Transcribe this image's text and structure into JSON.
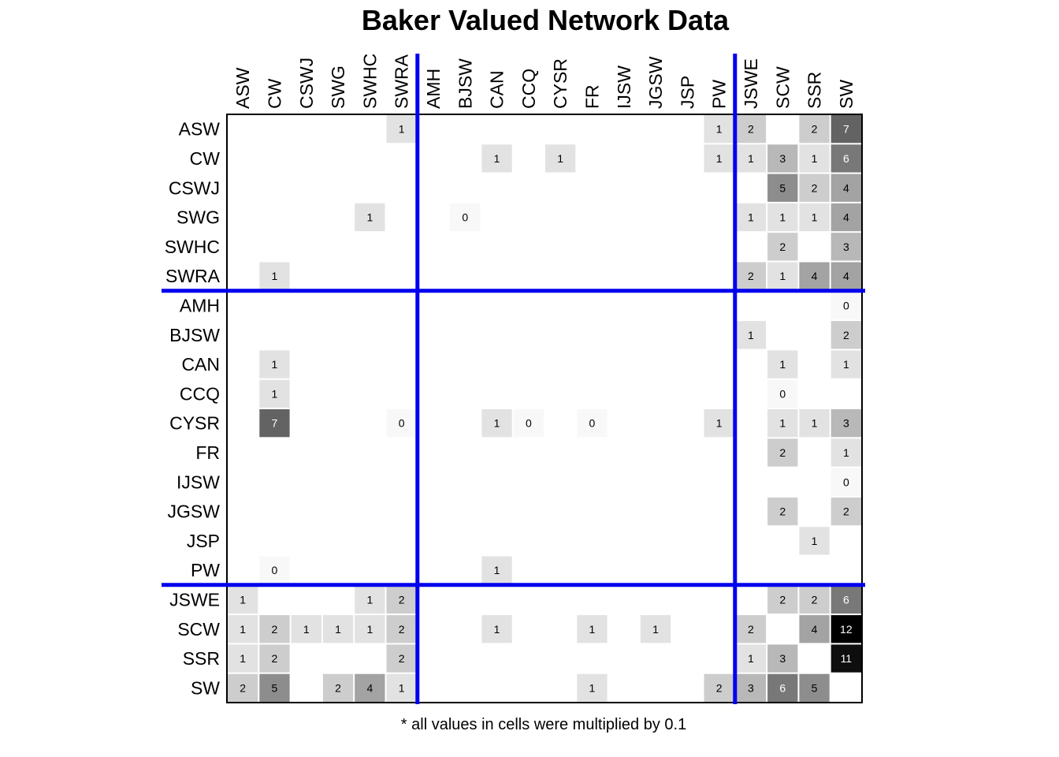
{
  "chart_data": {
    "type": "heatmap",
    "title": "Baker Valued Network Data",
    "caption": "* all values in cells were multiplied by 0.1",
    "labels": [
      "ASW",
      "CW",
      "CSWJ",
      "SWG",
      "SWHC",
      "SWRA",
      "AMH",
      "BJSW",
      "CAN",
      "CCQ",
      "CYSR",
      "FR",
      "IJSW",
      "JGSW",
      "JSP",
      "PW",
      "JSWE",
      "SCW",
      "SSR",
      "SW"
    ],
    "block_breaks_after": [
      5,
      15
    ],
    "block_line_color": "#0000ee",
    "color_scale": {
      "min": 0,
      "max": 12,
      "low": "#ffffff",
      "high": "#000000"
    },
    "matrix": [
      [
        null,
        null,
        null,
        null,
        null,
        1,
        null,
        null,
        null,
        null,
        null,
        null,
        null,
        null,
        null,
        1,
        2,
        null,
        2,
        7
      ],
      [
        null,
        null,
        null,
        null,
        null,
        null,
        null,
        null,
        1,
        null,
        1,
        null,
        null,
        null,
        null,
        1,
        1,
        3,
        1,
        6
      ],
      [
        null,
        null,
        null,
        null,
        null,
        null,
        null,
        null,
        null,
        null,
        null,
        null,
        null,
        null,
        null,
        null,
        null,
        5,
        2,
        4
      ],
      [
        null,
        null,
        null,
        null,
        1,
        null,
        null,
        0,
        null,
        null,
        null,
        null,
        null,
        null,
        null,
        null,
        1,
        1,
        1,
        4
      ],
      [
        null,
        null,
        null,
        null,
        null,
        null,
        null,
        null,
        null,
        null,
        null,
        null,
        null,
        null,
        null,
        null,
        null,
        2,
        null,
        3
      ],
      [
        null,
        1,
        null,
        null,
        null,
        null,
        null,
        null,
        null,
        null,
        null,
        null,
        null,
        null,
        null,
        null,
        2,
        1,
        4,
        4
      ],
      [
        null,
        null,
        null,
        null,
        null,
        null,
        null,
        null,
        null,
        null,
        null,
        null,
        null,
        null,
        null,
        null,
        null,
        null,
        null,
        0
      ],
      [
        null,
        null,
        null,
        null,
        null,
        null,
        null,
        null,
        null,
        null,
        null,
        null,
        null,
        null,
        null,
        null,
        1,
        null,
        null,
        2
      ],
      [
        null,
        1,
        null,
        null,
        null,
        null,
        null,
        null,
        null,
        null,
        null,
        null,
        null,
        null,
        null,
        null,
        null,
        1,
        null,
        1
      ],
      [
        null,
        1,
        null,
        null,
        null,
        null,
        null,
        null,
        null,
        null,
        null,
        null,
        null,
        null,
        null,
        null,
        null,
        0,
        null,
        null
      ],
      [
        null,
        7,
        null,
        null,
        null,
        0,
        null,
        null,
        1,
        0,
        null,
        0,
        null,
        null,
        null,
        1,
        null,
        1,
        1,
        3
      ],
      [
        null,
        null,
        null,
        null,
        null,
        null,
        null,
        null,
        null,
        null,
        null,
        null,
        null,
        null,
        null,
        null,
        null,
        2,
        null,
        1
      ],
      [
        null,
        null,
        null,
        null,
        null,
        null,
        null,
        null,
        null,
        null,
        null,
        null,
        null,
        null,
        null,
        null,
        null,
        null,
        null,
        0
      ],
      [
        null,
        null,
        null,
        null,
        null,
        null,
        null,
        null,
        null,
        null,
        null,
        null,
        null,
        null,
        null,
        null,
        null,
        2,
        null,
        2
      ],
      [
        null,
        null,
        null,
        null,
        null,
        null,
        null,
        null,
        null,
        null,
        null,
        null,
        null,
        null,
        null,
        null,
        null,
        null,
        1,
        null
      ],
      [
        null,
        0,
        null,
        null,
        null,
        null,
        null,
        null,
        1,
        null,
        null,
        null,
        null,
        null,
        null,
        null,
        null,
        null,
        null,
        null
      ],
      [
        1,
        null,
        null,
        null,
        1,
        2,
        null,
        null,
        null,
        null,
        null,
        null,
        null,
        null,
        null,
        null,
        null,
        2,
        2,
        6
      ],
      [
        1,
        2,
        1,
        1,
        1,
        2,
        null,
        null,
        1,
        null,
        null,
        1,
        null,
        1,
        null,
        null,
        2,
        null,
        4,
        12
      ],
      [
        1,
        2,
        null,
        null,
        null,
        2,
        null,
        null,
        null,
        null,
        null,
        null,
        null,
        null,
        null,
        null,
        1,
        3,
        null,
        11
      ],
      [
        2,
        5,
        null,
        2,
        4,
        1,
        null,
        null,
        null,
        null,
        null,
        1,
        null,
        null,
        null,
        2,
        3,
        6,
        5,
        null
      ]
    ]
  }
}
